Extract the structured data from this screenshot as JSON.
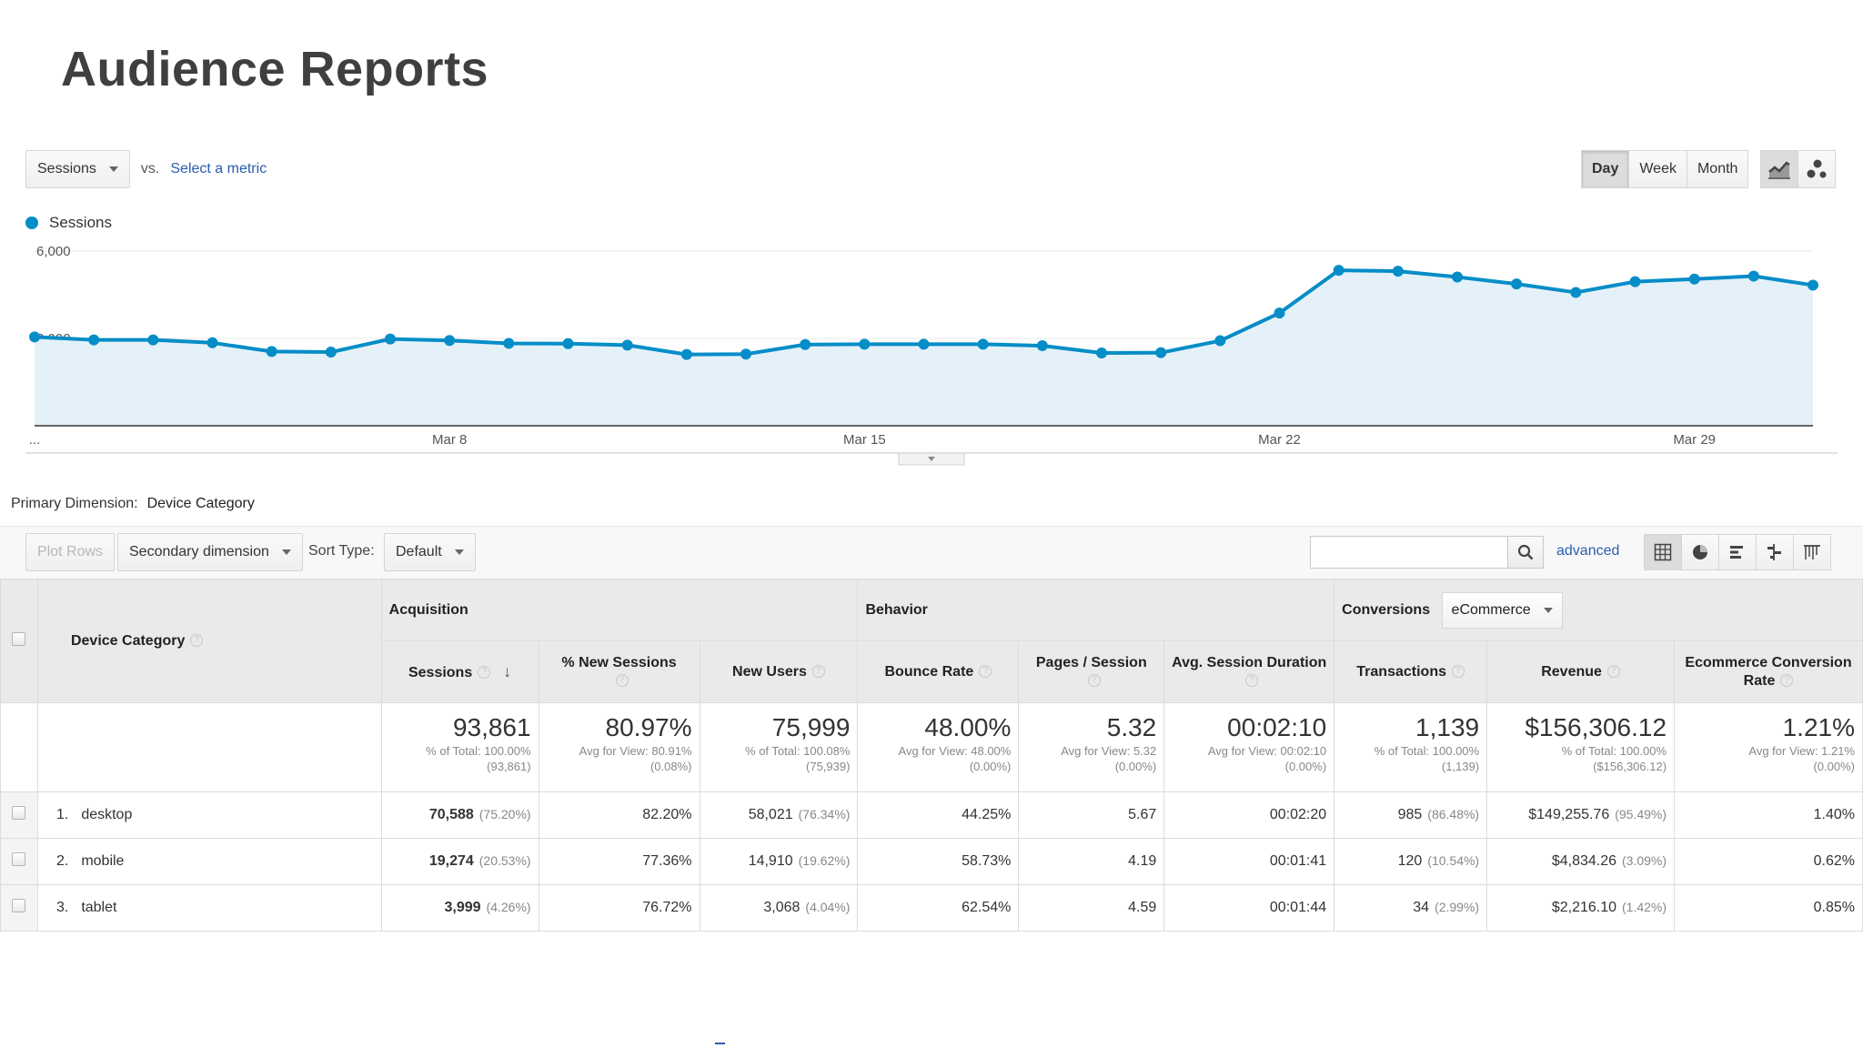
{
  "page_title": "Audience Reports",
  "controls": {
    "metric_dropdown": "Sessions",
    "vs_label": "vs.",
    "select_metric": "Select a metric",
    "range_buttons": [
      "Day",
      "Week",
      "Month"
    ],
    "active_range": "Day"
  },
  "legend": {
    "series_label": "Sessions",
    "color": "#058dc7"
  },
  "chart_data": {
    "type": "area",
    "series": [
      {
        "name": "Sessions",
        "values": [
          3050,
          2950,
          2950,
          2850,
          2550,
          2530,
          2980,
          2930,
          2830,
          2820,
          2770,
          2450,
          2460,
          2790,
          2800,
          2800,
          2800,
          2750,
          2500,
          2510,
          2920,
          3870,
          5340,
          5310,
          5110,
          4870,
          4580,
          4950,
          5040,
          5140,
          4830
        ]
      }
    ],
    "x_tick_labels": [
      "...",
      "Mar 8",
      "Mar 15",
      "Mar 22",
      "Mar 29"
    ],
    "x_tick_indices": [
      0,
      7,
      14,
      21,
      28
    ],
    "y_tick_labels": [
      "3,000",
      "6,000"
    ],
    "y_ticks": [
      3000,
      6000
    ],
    "ylim": [
      0,
      6000
    ],
    "grid": true
  },
  "dimension": {
    "label": "Primary Dimension:",
    "value": "Device Category"
  },
  "toolbar": {
    "plot_rows": "Plot Rows",
    "secondary_dimension": "Secondary dimension",
    "sort_type_label": "Sort Type:",
    "sort_type_value": "Default",
    "advanced": "advanced"
  },
  "table": {
    "dim_header": "Device Category",
    "groups": {
      "acquisition": "Acquisition",
      "behavior": "Behavior",
      "conversions": "Conversions",
      "conversions_select": "eCommerce"
    },
    "columns": [
      "Sessions",
      "% New Sessions",
      "New Users",
      "Bounce Rate",
      "Pages / Session",
      "Avg. Session Duration",
      "Transactions",
      "Revenue",
      "Ecommerce Conversion Rate"
    ],
    "totals": [
      {
        "value": "93,861",
        "line1": "% of Total: 100.00%",
        "line2": "(93,861)"
      },
      {
        "value": "80.97%",
        "line1": "Avg for View: 80.91%",
        "line2": "(0.08%)"
      },
      {
        "value": "75,999",
        "line1": "% of Total: 100.08%",
        "line2": "(75,939)"
      },
      {
        "value": "48.00%",
        "line1": "Avg for View: 48.00%",
        "line2": "(0.00%)"
      },
      {
        "value": "5.32",
        "line1": "Avg for View: 5.32",
        "line2": "(0.00%)"
      },
      {
        "value": "00:02:10",
        "line1": "Avg for View: 00:02:10",
        "line2": "(0.00%)"
      },
      {
        "value": "1,139",
        "line1": "% of Total: 100.00%",
        "line2": "(1,139)"
      },
      {
        "value": "$156,306.12",
        "line1": "% of Total: 100.00%",
        "line2": "($156,306.12)"
      },
      {
        "value": "1.21%",
        "line1": "Avg for View: 1.21%",
        "line2": "(0.00%)"
      }
    ],
    "rows": [
      {
        "num": "1.",
        "name": "desktop",
        "sessions": "70,588",
        "sessions_pct": "(75.20%)",
        "new_sessions": "82.20%",
        "new_users": "58,021",
        "new_users_pct": "(76.34%)",
        "bounce": "44.25%",
        "pages": "5.67",
        "duration": "00:02:20",
        "transactions": "985",
        "transactions_pct": "(86.48%)",
        "revenue": "$149,255.76",
        "revenue_pct": "(95.49%)",
        "conv": "1.40%"
      },
      {
        "num": "2.",
        "name": "mobile",
        "sessions": "19,274",
        "sessions_pct": "(20.53%)",
        "new_sessions": "77.36%",
        "new_users": "14,910",
        "new_users_pct": "(19.62%)",
        "bounce": "58.73%",
        "pages": "4.19",
        "duration": "00:01:41",
        "transactions": "120",
        "transactions_pct": "(10.54%)",
        "revenue": "$4,834.26",
        "revenue_pct": "(3.09%)",
        "conv": "0.62%"
      },
      {
        "num": "3.",
        "name": "tablet",
        "sessions": "3,999",
        "sessions_pct": "(4.26%)",
        "new_sessions": "76.72%",
        "new_users": "3,068",
        "new_users_pct": "(4.04%)",
        "bounce": "62.54%",
        "pages": "4.59",
        "duration": "00:01:44",
        "transactions": "34",
        "transactions_pct": "(2.99%)",
        "revenue": "$2,216.10",
        "revenue_pct": "(1.42%)",
        "conv": "0.85%"
      }
    ]
  }
}
